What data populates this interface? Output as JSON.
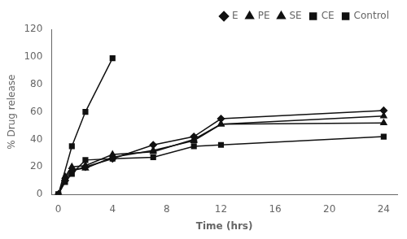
{
  "chart_data": {
    "type": "line",
    "xlabel": "Time (hrs)",
    "ylabel": "% Drug release",
    "xlim": [
      -0.5,
      25
    ],
    "ylim": [
      0,
      120
    ],
    "xticks": [
      0,
      4,
      8,
      12,
      16,
      20,
      24
    ],
    "yticks": [
      0,
      20,
      40,
      60,
      80,
      100,
      120
    ],
    "grid": false,
    "legend": "upper right",
    "series": [
      {
        "name": "E",
        "color": "#111111",
        "marker": "diamond",
        "line_style": "solid",
        "x": [
          0,
          0.5,
          1,
          2,
          4,
          7,
          10,
          12,
          24
        ],
        "values": [
          0,
          10,
          17,
          20,
          26,
          36,
          42,
          55,
          61
        ]
      },
      {
        "name": "PE",
        "color": "#111111",
        "marker": "triangle",
        "line_style": "solid",
        "x": [
          0,
          0.5,
          1,
          2,
          4,
          7,
          10,
          12,
          24
        ],
        "values": [
          0,
          12,
          18,
          19,
          27,
          32,
          39,
          51,
          57
        ]
      },
      {
        "name": "SE",
        "color": "#111111",
        "marker": "triangle",
        "line_style": "solid",
        "x": [
          0,
          0.5,
          1,
          2,
          4,
          7,
          10,
          12,
          24
        ],
        "values": [
          0,
          13,
          20,
          21,
          29,
          31,
          40,
          51,
          52
        ]
      },
      {
        "name": "CE",
        "color": "#111111",
        "marker": "square",
        "line_style": "solid",
        "x": [
          0,
          0.5,
          1,
          2,
          4,
          7,
          10,
          12,
          24
        ],
        "values": [
          0,
          9,
          15,
          25,
          26,
          27,
          35,
          36,
          42
        ]
      },
      {
        "name": "Control",
        "color": "#111111",
        "marker": "square",
        "line_style": "solid",
        "x": [
          0,
          1,
          2,
          4
        ],
        "values": [
          0,
          35,
          60,
          99
        ]
      }
    ]
  }
}
